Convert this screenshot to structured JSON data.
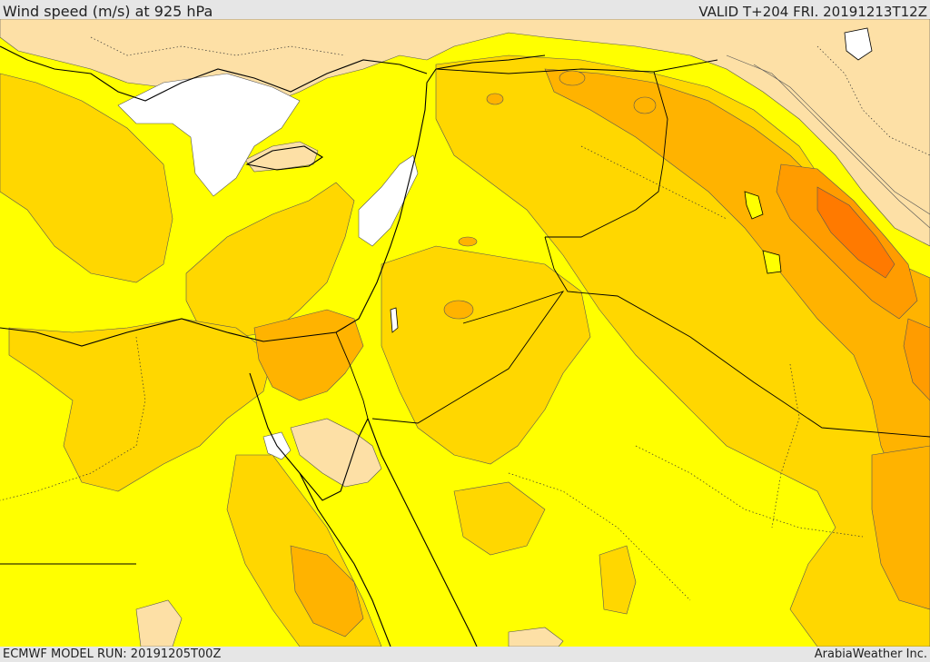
{
  "header": {
    "title": "Wind speed (m/s) at 925 hPa",
    "valid": "VALID T+204 FRI. 20191213T12Z"
  },
  "footer": {
    "model_run": "ECMWF MODEL RUN: 20191205T00Z",
    "credit": "ArabiaWeather Inc."
  },
  "colors": {
    "calm": "#ffffff",
    "light": "#fde0a6",
    "base": "#ffff00",
    "mid": "#ffd700",
    "strong": "#ffb300",
    "stronger": "#ff9c00",
    "strongest": "#ff7a00",
    "contour": "#555555",
    "coast": "#000000"
  }
}
